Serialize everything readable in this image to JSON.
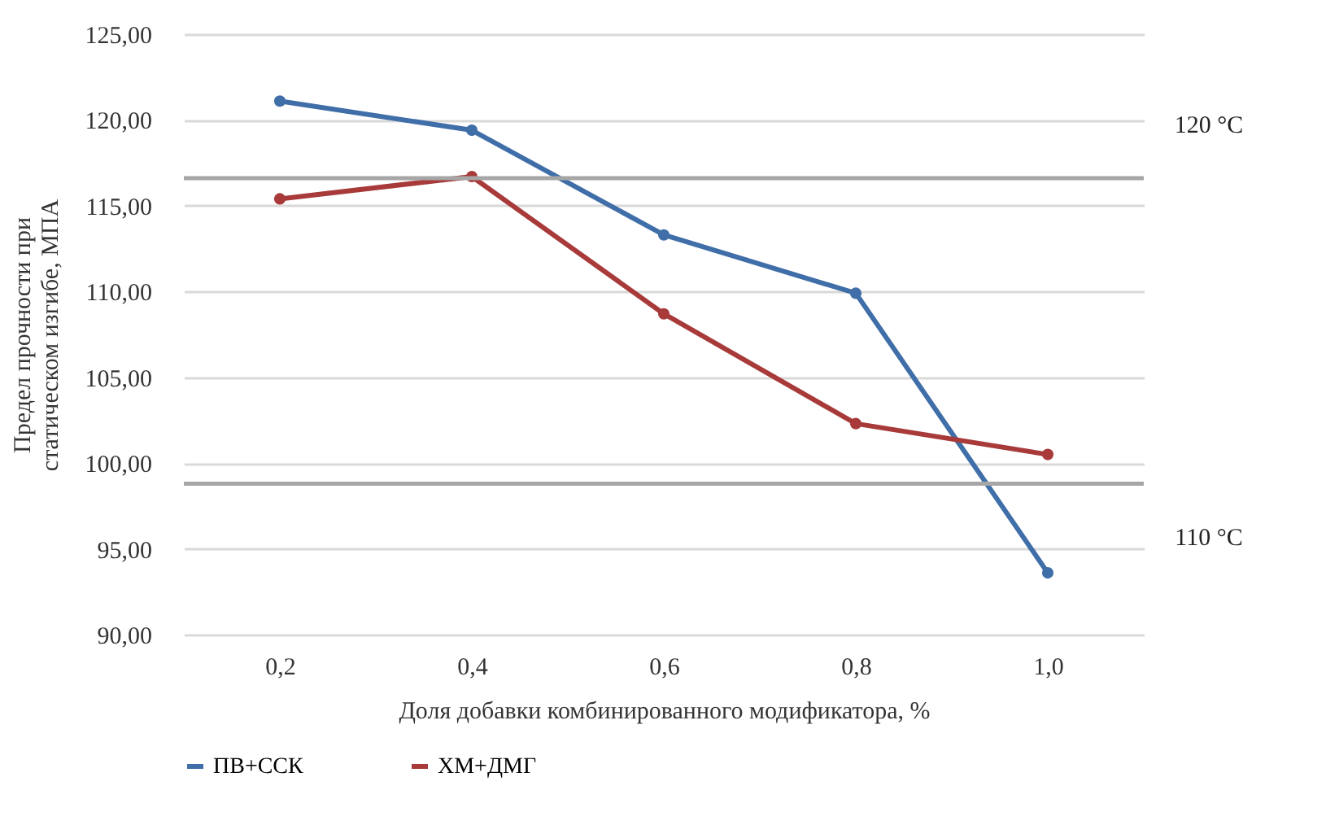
{
  "chart_data": {
    "type": "line",
    "xlabel": "Доля добавки комбинированного модификатора, %",
    "ylabel": "Предел прочности при статическом изгибе, МПА",
    "categories": [
      "0,2",
      "0,4",
      "0,6",
      "0,8",
      "1,0"
    ],
    "series": [
      {
        "name": "ПВ+ССК",
        "color": "#3f6ea8",
        "values": [
          121.1,
          119.4,
          113.3,
          109.9,
          93.6
        ]
      },
      {
        "name": "ХМ+ДМГ",
        "color": "#a83a3a",
        "values": [
          115.4,
          116.7,
          108.7,
          102.3,
          100.5
        ]
      }
    ],
    "ylim": [
      90,
      125
    ],
    "yticks": [
      {
        "value": 90,
        "label": "90,00"
      },
      {
        "value": 95,
        "label": "95,00"
      },
      {
        "value": 100,
        "label": "100,00"
      },
      {
        "value": 105,
        "label": "105,00"
      },
      {
        "value": 110,
        "label": "110,00"
      },
      {
        "value": 115,
        "label": "115,00"
      },
      {
        "value": 120,
        "label": "120,00"
      },
      {
        "value": 125,
        "label": "125,00"
      }
    ],
    "ref_lines": [
      {
        "axis": "y",
        "value": 116.6,
        "label": "120 °C",
        "color": "#a6a6a6"
      },
      {
        "axis": "y",
        "value": 98.8,
        "label": "110 °C",
        "color": "#a6a6a6"
      }
    ],
    "grid": "y",
    "legend": "bottom",
    "marker": "circle",
    "line_style": "solid"
  }
}
